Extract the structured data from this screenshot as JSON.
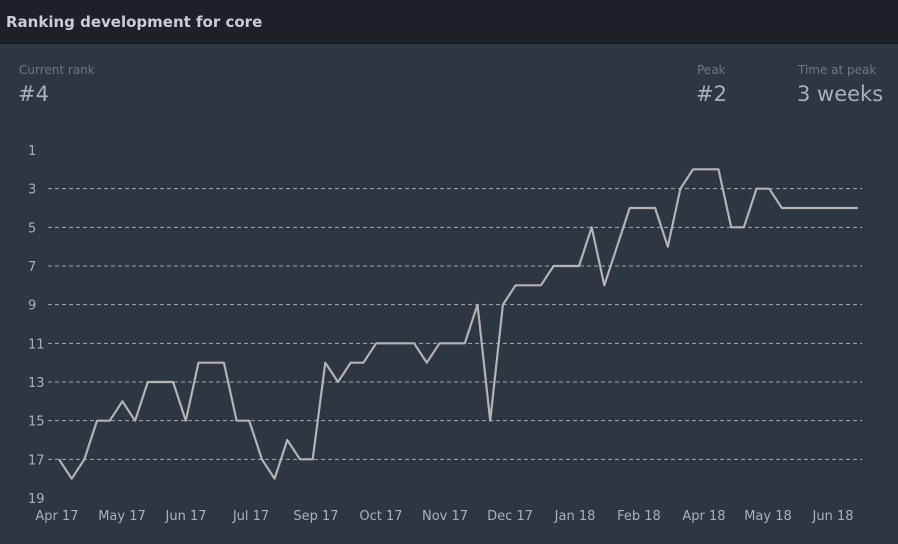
{
  "header": {
    "title": "Ranking development for core"
  },
  "stats": {
    "current_rank_label": "Current rank",
    "current_rank_value": "#4",
    "peak_label": "Peak",
    "peak_value": "#2",
    "time_at_peak_label": "Time at peak",
    "time_at_peak_value": "3 weeks"
  },
  "colors": {
    "line": "#b3b3b3",
    "grid": "#c8cdd4",
    "background": "#2e3642",
    "header": "#1c2128"
  },
  "chart_data": {
    "type": "line",
    "title": "",
    "xlabel": "",
    "ylabel": "",
    "y_inverted": true,
    "ylim": [
      1,
      19
    ],
    "y_ticks": [
      "1",
      "3",
      "5",
      "7",
      "9",
      "11",
      "13",
      "15",
      "17",
      "19"
    ],
    "x_ticks": [
      "Apr 17",
      "May 17",
      "Jun 17",
      "Jul 17",
      "Sep 17",
      "Oct 17",
      "Nov 17",
      "Dec 17",
      "Jan 18",
      "Feb 18",
      "Apr 18",
      "May 18",
      "Jun 18"
    ],
    "grid": "dashed horizontal",
    "series": [
      {
        "values": [
          17,
          18,
          17,
          15,
          15,
          14,
          15,
          13,
          13,
          13,
          15,
          12,
          12,
          12,
          15,
          15,
          17,
          18,
          16,
          17,
          17,
          12,
          13,
          12,
          12,
          11,
          11,
          11,
          11,
          12,
          11,
          11,
          11,
          9,
          15,
          9,
          8,
          8,
          8,
          7,
          7,
          7,
          5,
          8,
          6,
          4,
          4,
          4,
          6,
          3,
          2,
          2,
          2,
          5,
          5,
          3,
          3,
          4,
          4,
          4,
          4,
          4,
          4,
          4
        ]
      }
    ]
  }
}
